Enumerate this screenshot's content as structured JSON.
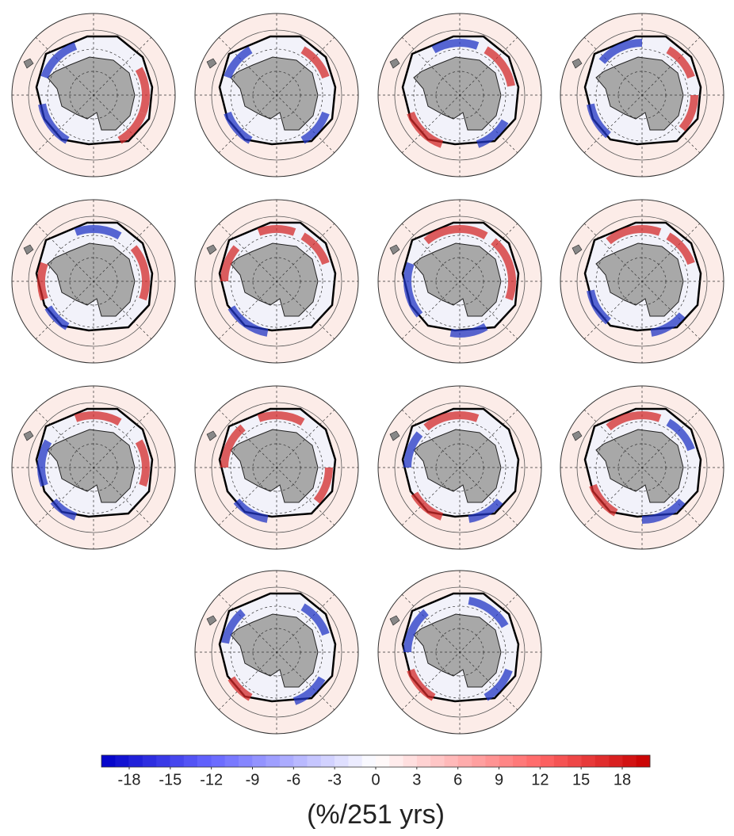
{
  "colorbar": {
    "ticks": [
      -18,
      -15,
      -12,
      -9,
      -6,
      -3,
      0,
      3,
      6,
      9,
      12,
      15,
      18
    ],
    "label": "(%/251 yrs)"
  }
}
